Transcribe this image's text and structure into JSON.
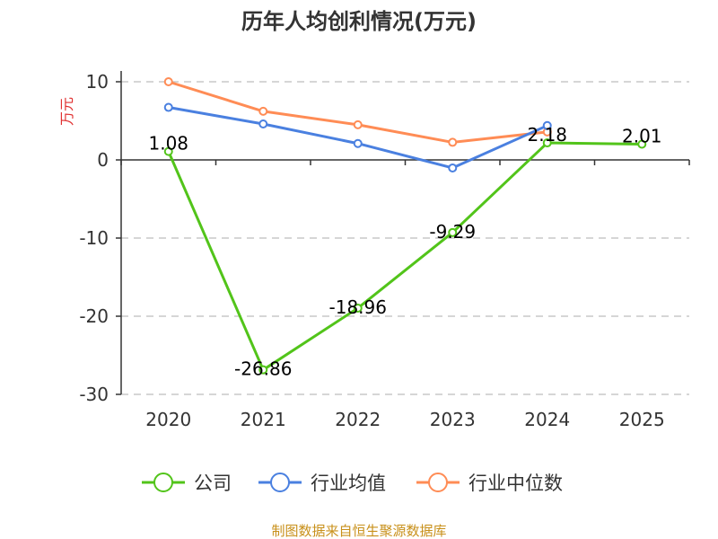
{
  "chart_data": {
    "type": "line",
    "title": "历年人均创利情况(万元)",
    "ylabel": "万元",
    "xlabel": "",
    "categories": [
      "2020",
      "2021",
      "2022",
      "2023",
      "2024",
      "2025"
    ],
    "ylim": [
      -30,
      10
    ],
    "yticks": [
      10,
      0,
      -10,
      -20,
      -30
    ],
    "ytick_labels": [
      "10",
      "0",
      "-10",
      "-20",
      "-30"
    ],
    "grid": true,
    "legend_position": "bottom",
    "series": [
      {
        "name": "公司",
        "color": "#52c41a",
        "values": [
          1.08,
          -26.86,
          -18.96,
          -9.29,
          2.18,
          2.01
        ],
        "labels": [
          "1.08",
          "-26.86",
          "-18.96",
          "-9.29",
          "2.18",
          "2.01"
        ]
      },
      {
        "name": "行业均值",
        "color": "#4a80e0",
        "values": [
          6.72,
          4.6,
          2.1,
          -1.03,
          4.39,
          null
        ]
      },
      {
        "name": "行业中位数",
        "color": "#ff8c55",
        "values": [
          10.0,
          6.22,
          4.5,
          2.25,
          3.58,
          null
        ]
      }
    ],
    "source": "制图数据来自恒生聚源数据库"
  }
}
